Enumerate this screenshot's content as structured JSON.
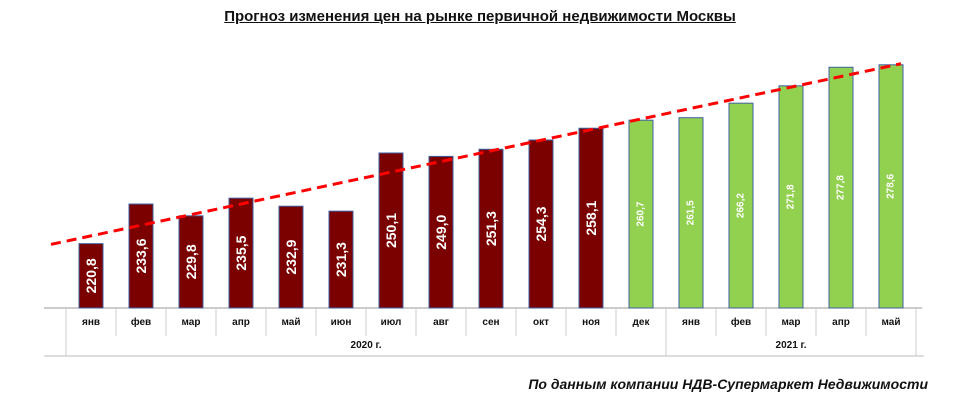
{
  "chart_data": {
    "type": "bar",
    "title": "Прогноз изменения цен на рынке первичной недвижимости Москвы",
    "categories": [
      "янв",
      "фев",
      "мар",
      "апр",
      "май",
      "июн",
      "июл",
      "авг",
      "сен",
      "окт",
      "ноя",
      "дек",
      "янв",
      "фев",
      "мар",
      "апр",
      "май"
    ],
    "values": [
      220.8,
      233.6,
      229.8,
      235.5,
      232.9,
      231.3,
      250.1,
      249.0,
      251.3,
      254.3,
      258.1,
      260.7,
      261.5,
      266.2,
      271.8,
      277.8,
      278.6
    ],
    "value_labels": [
      "220,8",
      "233,6",
      "229,8",
      "235,5",
      "232,9",
      "231,3",
      "250,1",
      "249,0",
      "251,3",
      "254,3",
      "258,1",
      "260,7",
      "261,5",
      "266,2",
      "271,8",
      "277,8",
      "278,6"
    ],
    "series_colors": [
      "#7b0000",
      "#7b0000",
      "#7b0000",
      "#7b0000",
      "#7b0000",
      "#7b0000",
      "#7b0000",
      "#7b0000",
      "#7b0000",
      "#7b0000",
      "#7b0000",
      "#92d050",
      "#92d050",
      "#92d050",
      "#92d050",
      "#92d050",
      "#92d050"
    ],
    "year_groups": [
      {
        "label": "2020 г.",
        "start": 0,
        "end": 11
      },
      {
        "label": "2021 г.",
        "start": 12,
        "end": 16
      }
    ],
    "trendline": {
      "style": "dashed",
      "color": "#ff0000"
    },
    "ylim": [
      200,
      285
    ],
    "source": "По данным компании НДВ-Супермаркет Недвижимости"
  }
}
